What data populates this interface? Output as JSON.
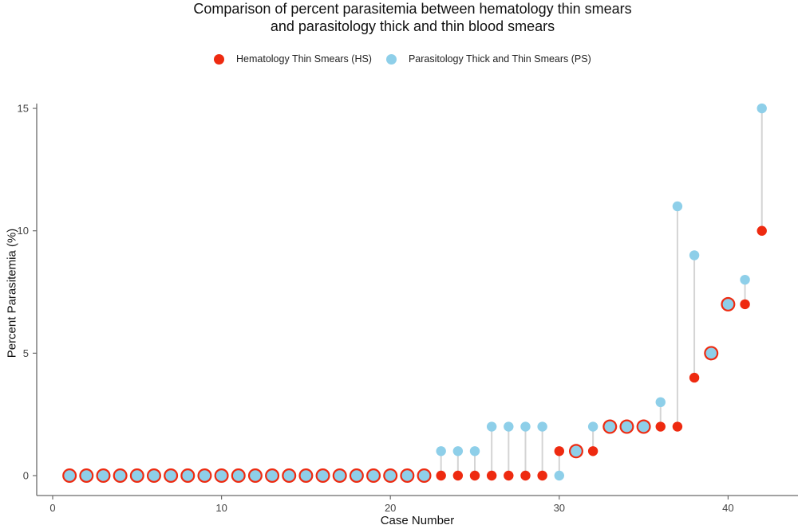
{
  "colors": {
    "hs": "#ee2a10",
    "ps": "#8ecfe9",
    "stem": "#d4d4d4",
    "axis": "#6b6b6b"
  },
  "chart_data": {
    "type": "scatter",
    "subtype": "dumbbell",
    "title_lines": [
      "Comparison of percent parasitemia between hematology thin smears",
      "and parasitology thick and thin blood smears"
    ],
    "xlabel": "Case Number",
    "ylabel": "Percent Parasitemia (%)",
    "xlim": [
      0,
      43
    ],
    "ylim": [
      0,
      15
    ],
    "xticks": [
      0,
      10,
      20,
      30,
      40
    ],
    "yticks": [
      0,
      5,
      10,
      15
    ],
    "legend_position": "top",
    "grid": false,
    "x": [
      1,
      2,
      3,
      4,
      5,
      6,
      7,
      8,
      9,
      10,
      11,
      12,
      13,
      14,
      15,
      16,
      17,
      18,
      19,
      20,
      21,
      22,
      23,
      24,
      25,
      26,
      27,
      28,
      29,
      30,
      31,
      32,
      33,
      34,
      35,
      36,
      37,
      38,
      39,
      40,
      41,
      42
    ],
    "series": [
      {
        "name": "Hematology Thin Smears (HS)",
        "key": "hs",
        "values": [
          0,
          0,
          0,
          0,
          0,
          0,
          0,
          0,
          0,
          0,
          0,
          0,
          0,
          0,
          0,
          0,
          0,
          0,
          0,
          0,
          0,
          0,
          0,
          0,
          0,
          0,
          0,
          0,
          0,
          1,
          1,
          1,
          2,
          2,
          2,
          2,
          2,
          4,
          5,
          7,
          7,
          10
        ]
      },
      {
        "name": "Parasitology Thick and Thin Smears (PS)",
        "key": "ps",
        "values": [
          0,
          0,
          0,
          0,
          0,
          0,
          0,
          0,
          0,
          0,
          0,
          0,
          0,
          0,
          0,
          0,
          0,
          0,
          0,
          0,
          0,
          0,
          1,
          1,
          1,
          2,
          2,
          2,
          2,
          0,
          1,
          2,
          2,
          2,
          2,
          3,
          11,
          9,
          5,
          7,
          8,
          15
        ]
      }
    ]
  }
}
